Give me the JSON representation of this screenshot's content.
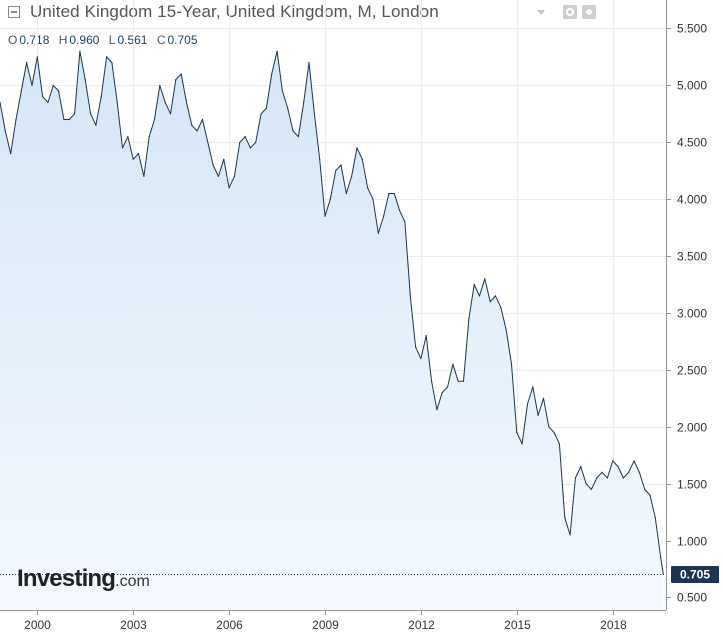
{
  "header": {
    "title": "United Kingdom 15-Year, United Kingdom, M, London",
    "ohlc": [
      {
        "key": "O",
        "value": "0.718"
      },
      {
        "key": "H",
        "value": "0.960"
      },
      {
        "key": "L",
        "value": "0.561"
      },
      {
        "key": "C",
        "value": "0.705"
      }
    ]
  },
  "watermark": {
    "brand": "Investing",
    "suffix": ".com"
  },
  "colors": {
    "line": "#1d3550",
    "fill_top": "#d5e6f6",
    "fill_bottom": "#f4f9fe",
    "last_price_badge": "#1d3550",
    "grid": "#e9eef3"
  },
  "chart_data": {
    "type": "area",
    "title": "United Kingdom 15-Year, United Kingdom, M, London",
    "xlabel": "",
    "ylabel": "",
    "x_ticks": [
      "2000",
      "2003",
      "2006",
      "2009",
      "2012",
      "2015",
      "2018"
    ],
    "y_ticks": [
      "5.500",
      "5.000",
      "4.500",
      "4.000",
      "3.500",
      "3.000",
      "2.500",
      "2.000",
      "1.500",
      "1.000",
      "0.500"
    ],
    "xlim": [
      "1998-11",
      "2019-09"
    ],
    "ylim": [
      0.39,
      5.75
    ],
    "grid": true,
    "last_price": "0.705",
    "series": [
      {
        "values": [
          [
            "1998-11",
            4.85
          ],
          [
            "1999-01",
            4.6
          ],
          [
            "1999-03",
            4.4
          ],
          [
            "1999-05",
            4.7
          ],
          [
            "1999-07",
            4.95
          ],
          [
            "1999-09",
            5.2
          ],
          [
            "1999-11",
            5.0
          ],
          [
            "2000-01",
            5.25
          ],
          [
            "2000-03",
            4.9
          ],
          [
            "2000-05",
            4.85
          ],
          [
            "2000-07",
            5.0
          ],
          [
            "2000-09",
            4.95
          ],
          [
            "2000-11",
            4.7
          ],
          [
            "2001-01",
            4.7
          ],
          [
            "2001-03",
            4.75
          ],
          [
            "2001-05",
            5.3
          ],
          [
            "2001-07",
            5.05
          ],
          [
            "2001-09",
            4.75
          ],
          [
            "2001-11",
            4.65
          ],
          [
            "2002-01",
            4.9
          ],
          [
            "2002-03",
            5.25
          ],
          [
            "2002-05",
            5.2
          ],
          [
            "2002-07",
            4.85
          ],
          [
            "2002-09",
            4.45
          ],
          [
            "2002-11",
            4.55
          ],
          [
            "2003-01",
            4.35
          ],
          [
            "2003-03",
            4.4
          ],
          [
            "2003-05",
            4.2
          ],
          [
            "2003-07",
            4.55
          ],
          [
            "2003-09",
            4.7
          ],
          [
            "2003-11",
            5.0
          ],
          [
            "2004-01",
            4.85
          ],
          [
            "2004-03",
            4.75
          ],
          [
            "2004-05",
            5.05
          ],
          [
            "2004-07",
            5.1
          ],
          [
            "2004-09",
            4.85
          ],
          [
            "2004-11",
            4.65
          ],
          [
            "2005-01",
            4.6
          ],
          [
            "2005-03",
            4.7
          ],
          [
            "2005-05",
            4.5
          ],
          [
            "2005-07",
            4.3
          ],
          [
            "2005-09",
            4.2
          ],
          [
            "2005-11",
            4.35
          ],
          [
            "2006-01",
            4.1
          ],
          [
            "2006-03",
            4.2
          ],
          [
            "2006-05",
            4.5
          ],
          [
            "2006-07",
            4.55
          ],
          [
            "2006-09",
            4.45
          ],
          [
            "2006-11",
            4.5
          ],
          [
            "2007-01",
            4.75
          ],
          [
            "2007-03",
            4.8
          ],
          [
            "2007-05",
            5.1
          ],
          [
            "2007-07",
            5.3
          ],
          [
            "2007-09",
            4.95
          ],
          [
            "2007-11",
            4.8
          ],
          [
            "2008-01",
            4.6
          ],
          [
            "2008-03",
            4.55
          ],
          [
            "2008-05",
            4.85
          ],
          [
            "2008-07",
            5.2
          ],
          [
            "2008-09",
            4.75
          ],
          [
            "2008-11",
            4.35
          ],
          [
            "2009-01",
            3.85
          ],
          [
            "2009-03",
            4.0
          ],
          [
            "2009-05",
            4.25
          ],
          [
            "2009-07",
            4.3
          ],
          [
            "2009-09",
            4.05
          ],
          [
            "2009-11",
            4.2
          ],
          [
            "2010-01",
            4.45
          ],
          [
            "2010-03",
            4.35
          ],
          [
            "2010-05",
            4.1
          ],
          [
            "2010-07",
            4.0
          ],
          [
            "2010-09",
            3.7
          ],
          [
            "2010-11",
            3.85
          ],
          [
            "2011-01",
            4.05
          ],
          [
            "2011-03",
            4.05
          ],
          [
            "2011-05",
            3.9
          ],
          [
            "2011-07",
            3.8
          ],
          [
            "2011-09",
            3.15
          ],
          [
            "2011-11",
            2.7
          ],
          [
            "2012-01",
            2.6
          ],
          [
            "2012-03",
            2.8
          ],
          [
            "2012-05",
            2.4
          ],
          [
            "2012-07",
            2.15
          ],
          [
            "2012-09",
            2.3
          ],
          [
            "2012-11",
            2.35
          ],
          [
            "2013-01",
            2.55
          ],
          [
            "2013-03",
            2.4
          ],
          [
            "2013-05",
            2.4
          ],
          [
            "2013-07",
            2.95
          ],
          [
            "2013-09",
            3.25
          ],
          [
            "2013-11",
            3.15
          ],
          [
            "2014-01",
            3.3
          ],
          [
            "2014-03",
            3.1
          ],
          [
            "2014-05",
            3.15
          ],
          [
            "2014-07",
            3.05
          ],
          [
            "2014-09",
            2.85
          ],
          [
            "2014-11",
            2.55
          ],
          [
            "2015-01",
            1.95
          ],
          [
            "2015-03",
            1.85
          ],
          [
            "2015-05",
            2.2
          ],
          [
            "2015-07",
            2.35
          ],
          [
            "2015-09",
            2.1
          ],
          [
            "2015-11",
            2.25
          ],
          [
            "2016-01",
            2.0
          ],
          [
            "2016-03",
            1.95
          ],
          [
            "2016-05",
            1.85
          ],
          [
            "2016-07",
            1.2
          ],
          [
            "2016-09",
            1.05
          ],
          [
            "2016-11",
            1.55
          ],
          [
            "2017-01",
            1.65
          ],
          [
            "2017-03",
            1.5
          ],
          [
            "2017-05",
            1.45
          ],
          [
            "2017-07",
            1.55
          ],
          [
            "2017-09",
            1.6
          ],
          [
            "2017-11",
            1.55
          ],
          [
            "2018-01",
            1.7
          ],
          [
            "2018-03",
            1.65
          ],
          [
            "2018-05",
            1.55
          ],
          [
            "2018-07",
            1.6
          ],
          [
            "2018-09",
            1.7
          ],
          [
            "2018-11",
            1.6
          ],
          [
            "2019-01",
            1.45
          ],
          [
            "2019-03",
            1.4
          ],
          [
            "2019-05",
            1.2
          ],
          [
            "2019-07",
            0.85
          ],
          [
            "2019-08",
            0.705
          ]
        ]
      }
    ]
  }
}
